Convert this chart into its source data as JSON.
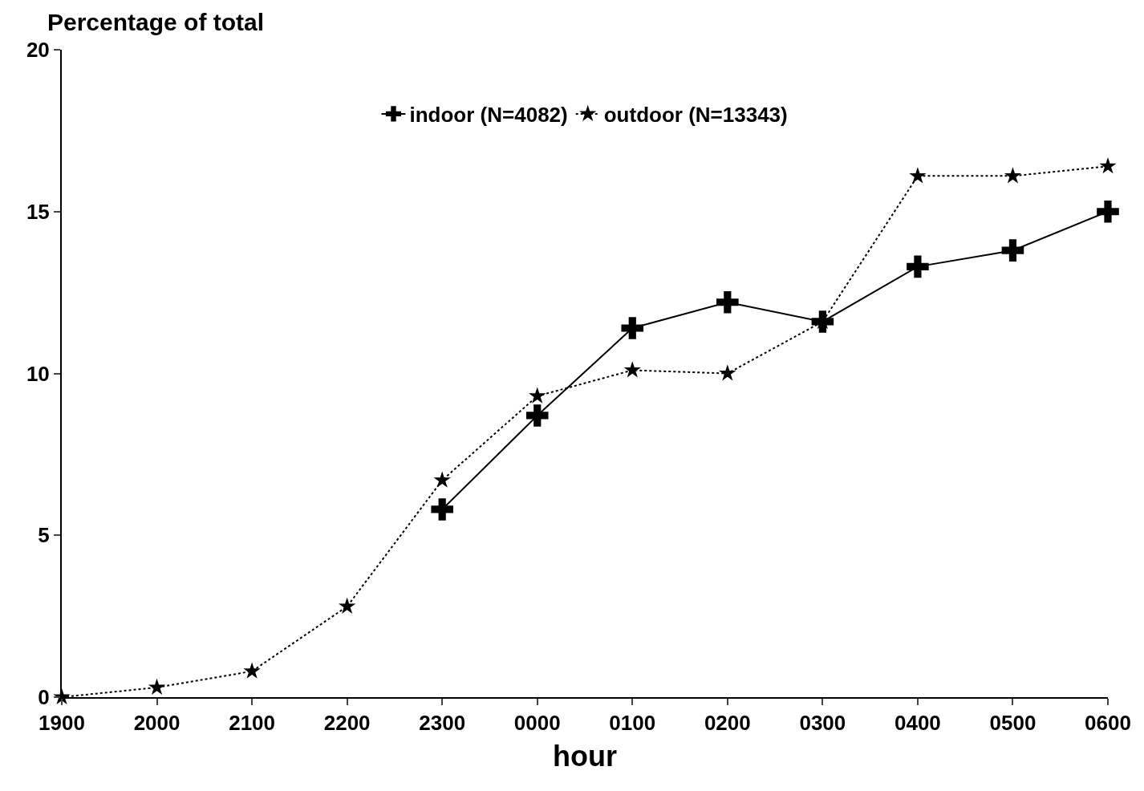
{
  "chart_data": {
    "type": "line",
    "ylabel": "Percentage of total",
    "xlabel": "hour",
    "categories": [
      "1900",
      "2000",
      "2100",
      "2200",
      "2300",
      "0000",
      "0100",
      "0200",
      "0300",
      "0400",
      "0500",
      "0600"
    ],
    "series": [
      {
        "name": "indoor (N=4082)",
        "color": "#000000",
        "marker": "cross",
        "line_style": "solid",
        "values": [
          null,
          null,
          null,
          null,
          5.8,
          8.7,
          11.4,
          12.2,
          11.6,
          13.3,
          13.8,
          15.0
        ]
      },
      {
        "name": "outdoor (N=13343)",
        "color": "#000000",
        "marker": "star",
        "line_style": "dotted",
        "values": [
          0,
          0.3,
          0.8,
          2.8,
          6.7,
          9.3,
          10.1,
          10.0,
          11.6,
          16.1,
          16.1,
          16.4
        ]
      }
    ],
    "ylim": [
      0,
      20
    ],
    "yticks": [
      0,
      5,
      10,
      15,
      20
    ],
    "grid": false,
    "legend": "top"
  }
}
